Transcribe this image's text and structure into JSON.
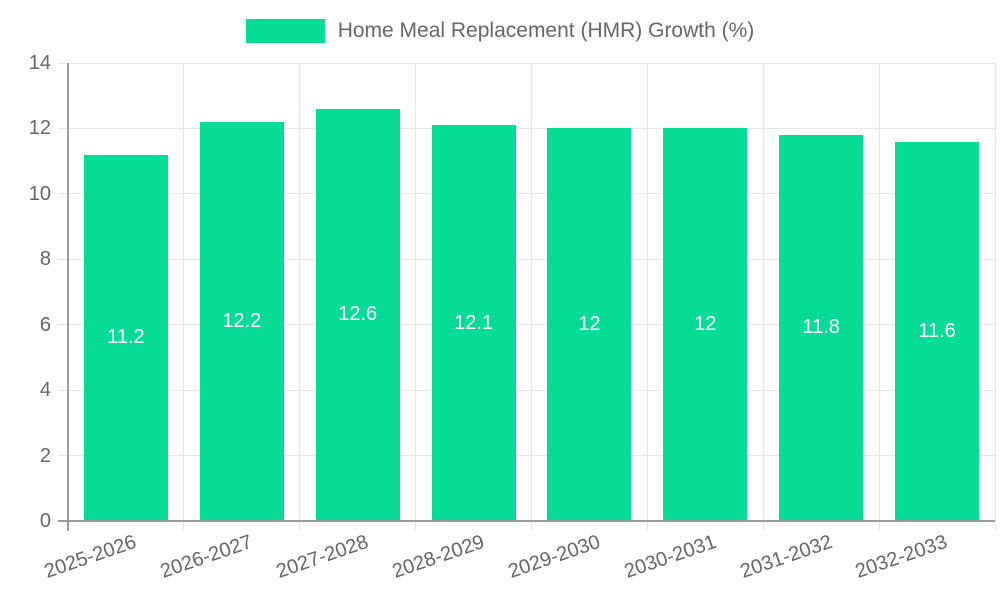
{
  "chart_data": {
    "type": "bar",
    "title": "",
    "xlabel": "",
    "ylabel": "",
    "categories": [
      "2025-2026",
      "2026-2027",
      "2027-2028",
      "2028-2029",
      "2029-2030",
      "2030-2031",
      "2031-2032",
      "2032-2033"
    ],
    "series": [
      {
        "name": "Home Meal Replacement (HMR) Growth (%)",
        "values": [
          11.2,
          12.2,
          12.6,
          12.1,
          12,
          12,
          11.8,
          11.6
        ]
      }
    ],
    "ylim": [
      0,
      14
    ],
    "ytick_step": 2,
    "yticks": [
      0,
      2,
      4,
      6,
      8,
      10,
      12,
      14
    ],
    "grid": true,
    "legend_position": "top-center",
    "value_label_position": "inside-center",
    "x_label_rotation_deg": -19
  },
  "colors": {
    "bar": "#05db94",
    "grid": "#e6e6e6",
    "axis": "#9a9a9a",
    "text": "#666666",
    "value_label": "#ffffff",
    "background": "#ffffff"
  }
}
